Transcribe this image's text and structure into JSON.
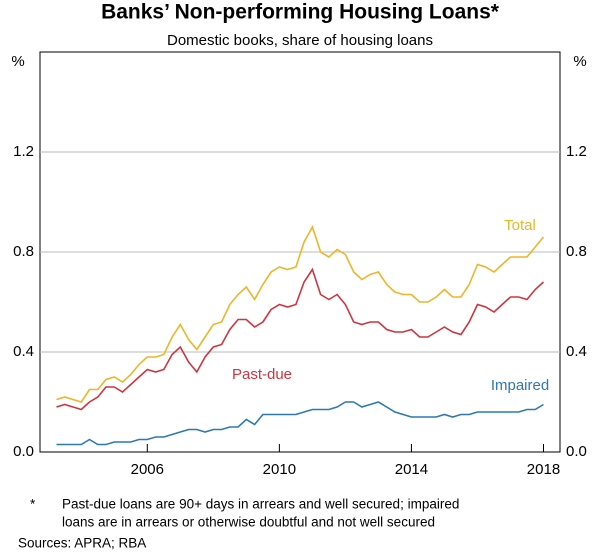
{
  "chart_data": {
    "type": "line",
    "title": "Banks’ Non-performing Housing Loans*",
    "subtitle": "Domestic books, share of housing loans",
    "y_label": "%",
    "y2_label": "%",
    "footnote_marker": "*",
    "footnote": [
      "Past-due loans are 90+ days in arrears and well secured; impaired",
      "loans are in arrears or otherwise doubtful and not well secured"
    ],
    "source": "Sources: APRA; RBA",
    "x": [
      2003.25,
      2003.5,
      2003.75,
      2004,
      2004.25,
      2004.5,
      2004.75,
      2005,
      2005.25,
      2005.5,
      2005.75,
      2006,
      2006.25,
      2006.5,
      2006.75,
      2007,
      2007.25,
      2007.5,
      2007.75,
      2008,
      2008.25,
      2008.5,
      2008.75,
      2009,
      2009.25,
      2009.5,
      2009.75,
      2010,
      2010.25,
      2010.5,
      2010.75,
      2011,
      2011.25,
      2011.5,
      2011.75,
      2012,
      2012.25,
      2012.5,
      2012.75,
      2013,
      2013.25,
      2013.5,
      2013.75,
      2014,
      2014.25,
      2014.5,
      2014.75,
      2015,
      2015.25,
      2015.5,
      2015.75,
      2016,
      2016.25,
      2016.5,
      2016.75,
      2017,
      2017.25,
      2017.5,
      2017.75,
      2018
    ],
    "series": [
      {
        "name": "Total",
        "color": "#f0b429",
        "values": [
          0.21,
          0.22,
          0.21,
          0.2,
          0.25,
          0.25,
          0.29,
          0.3,
          0.28,
          0.31,
          0.35,
          0.38,
          0.38,
          0.39,
          0.46,
          0.51,
          0.45,
          0.41,
          0.46,
          0.51,
          0.52,
          0.59,
          0.63,
          0.66,
          0.61,
          0.67,
          0.72,
          0.74,
          0.73,
          0.74,
          0.84,
          0.9,
          0.8,
          0.78,
          0.81,
          0.79,
          0.72,
          0.69,
          0.71,
          0.72,
          0.67,
          0.64,
          0.63,
          0.63,
          0.6,
          0.6,
          0.62,
          0.65,
          0.62,
          0.62,
          0.67,
          0.75,
          0.74,
          0.72,
          0.75,
          0.78,
          0.78,
          0.78,
          0.82,
          0.86
        ]
      },
      {
        "name": "Past-due",
        "color": "#d0343f",
        "values": [
          0.18,
          0.19,
          0.18,
          0.17,
          0.2,
          0.22,
          0.26,
          0.26,
          0.24,
          0.27,
          0.3,
          0.33,
          0.32,
          0.33,
          0.39,
          0.42,
          0.36,
          0.32,
          0.38,
          0.42,
          0.43,
          0.49,
          0.53,
          0.53,
          0.5,
          0.52,
          0.57,
          0.59,
          0.58,
          0.59,
          0.68,
          0.73,
          0.63,
          0.61,
          0.63,
          0.59,
          0.52,
          0.51,
          0.52,
          0.52,
          0.49,
          0.48,
          0.48,
          0.49,
          0.46,
          0.46,
          0.48,
          0.5,
          0.48,
          0.47,
          0.52,
          0.59,
          0.58,
          0.56,
          0.59,
          0.62,
          0.62,
          0.61,
          0.65,
          0.68
        ]
      },
      {
        "name": "Impaired",
        "color": "#2d78b5",
        "values": [
          0.03,
          0.03,
          0.03,
          0.03,
          0.05,
          0.03,
          0.03,
          0.04,
          0.04,
          0.04,
          0.05,
          0.05,
          0.06,
          0.06,
          0.07,
          0.08,
          0.09,
          0.09,
          0.08,
          0.09,
          0.09,
          0.1,
          0.1,
          0.13,
          0.11,
          0.15,
          0.15,
          0.15,
          0.15,
          0.15,
          0.16,
          0.17,
          0.17,
          0.17,
          0.18,
          0.2,
          0.2,
          0.18,
          0.19,
          0.2,
          0.18,
          0.16,
          0.15,
          0.14,
          0.14,
          0.14,
          0.14,
          0.15,
          0.14,
          0.15,
          0.15,
          0.16,
          0.16,
          0.16,
          0.16,
          0.16,
          0.16,
          0.17,
          0.17,
          0.19
        ]
      }
    ],
    "xlim": [
      2002.75,
      2018.5
    ],
    "xticks": [
      2006,
      2010,
      2014,
      2018
    ],
    "ylim": [
      0,
      1.6
    ],
    "yticks": [
      {
        "value": 0,
        "label": "0.0"
      },
      0.4,
      0.8,
      1.2
    ],
    "grid": true
  }
}
